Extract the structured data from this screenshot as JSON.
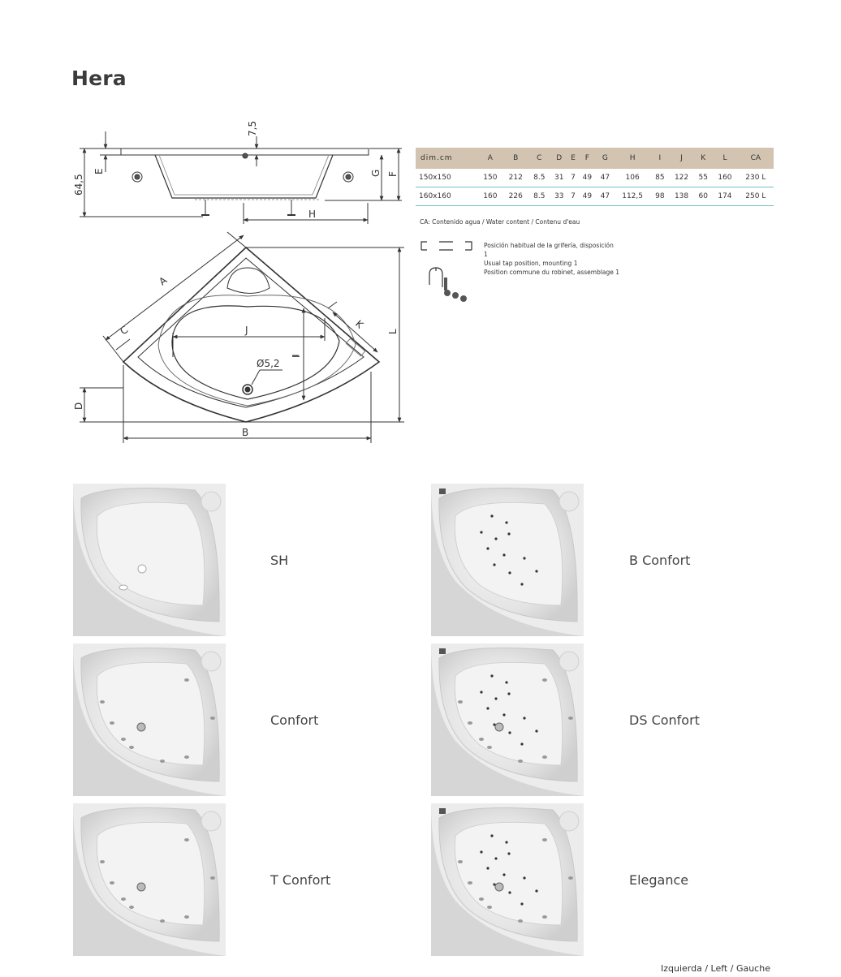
{
  "page_title": "Hera",
  "drawing": {
    "labels": {
      "top_dim": "7,5",
      "depth_dim": "64,5",
      "E": "E",
      "G": "G",
      "F": "F",
      "H": "H",
      "A": "A",
      "C": "C",
      "K": "K",
      "L": "L",
      "J": "J",
      "I": "I",
      "D": "D",
      "B": "B",
      "drain": "Ø5,2"
    }
  },
  "dimensions_table": {
    "headers": [
      "dim.cm",
      "A",
      "B",
      "C",
      "D",
      "E",
      "F",
      "G",
      "H",
      "I",
      "J",
      "K",
      "L",
      "CA"
    ],
    "rows": [
      [
        "150x150",
        "150",
        "212",
        "8.5",
        "31",
        "7",
        "49",
        "47",
        "106",
        "85",
        "122",
        "55",
        "160",
        "230 L"
      ],
      [
        "160x160",
        "160",
        "226",
        "8.5",
        "33",
        "7",
        "49",
        "47",
        "112,5",
        "98",
        "138",
        "60",
        "174",
        "250 L"
      ]
    ]
  },
  "ca_note": "CA: Contenido agua / Water content / Contenu d'eau",
  "tap_position": {
    "line1": "Posición habitual de la grifería, disposición",
    "line2": "1",
    "line3": "Usual tap position, mounting 1",
    "line4": "Position commune du robinet, assemblage 1"
  },
  "models": [
    {
      "label": "SH",
      "jets": "none"
    },
    {
      "label": "B Confort",
      "jets": "air"
    },
    {
      "label": "Confort",
      "jets": "hydro"
    },
    {
      "label": "DS Confort",
      "jets": "air+hydro"
    },
    {
      "label": "T Confort",
      "jets": "hydro"
    },
    {
      "label": "Elegance",
      "jets": "air+hydro"
    }
  ],
  "footer": "Izquierda  / Left / Gauche"
}
